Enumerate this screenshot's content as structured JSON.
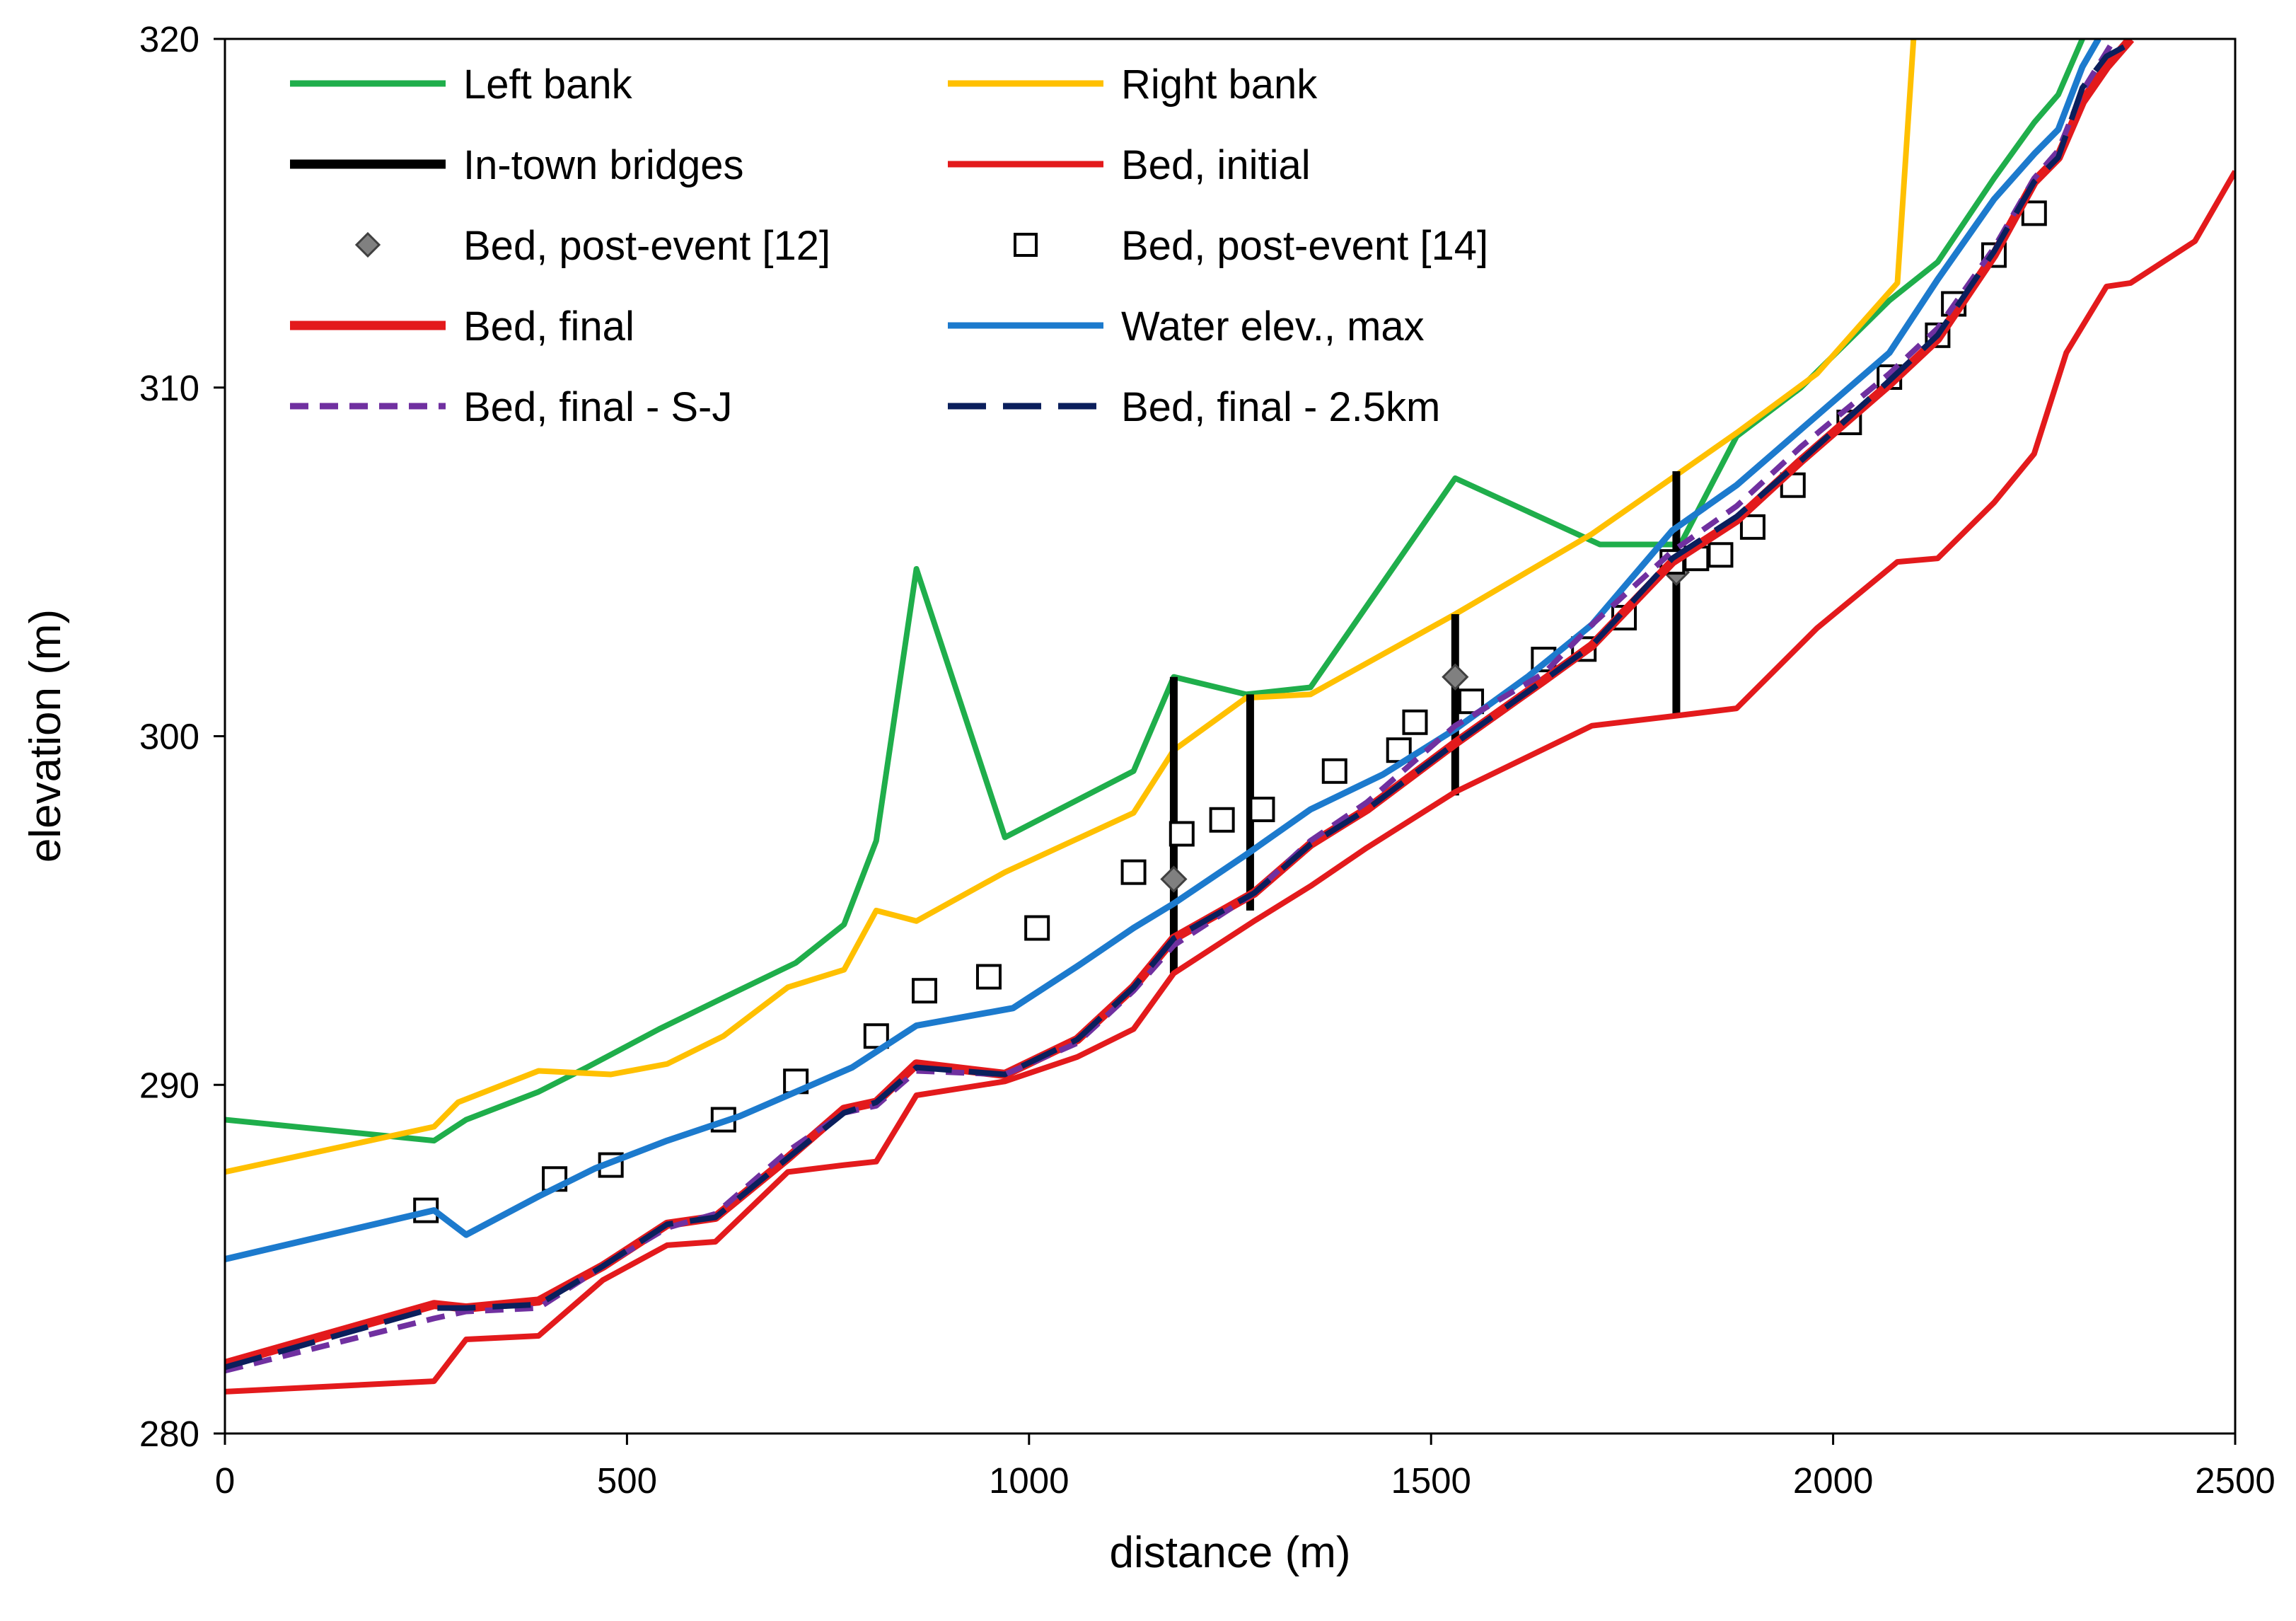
{
  "chart_data": {
    "type": "line",
    "title": "",
    "xlabel": "distance (m)",
    "ylabel": "elevation (m)",
    "xlim": [
      0,
      2500
    ],
    "ylim": [
      280,
      320
    ],
    "xticks": [
      0,
      500,
      1000,
      1500,
      2000,
      2500
    ],
    "yticks": [
      280,
      290,
      300,
      310,
      320
    ],
    "grid": false,
    "legend": "top-left, inside plot, two columns",
    "series": [
      {
        "name": "Left bank",
        "style": "line",
        "color": "#1FAE4B",
        "dash": "solid",
        "points": [
          [
            0,
            289
          ],
          [
            260,
            288.4
          ],
          [
            300,
            289
          ],
          [
            390,
            289.8
          ],
          [
            450,
            290.5
          ],
          [
            540,
            291.6
          ],
          [
            620,
            292.5
          ],
          [
            710,
            293.5
          ],
          [
            770,
            294.6
          ],
          [
            810,
            297
          ],
          [
            860,
            304.8
          ],
          [
            970,
            297.1
          ],
          [
            1130,
            299
          ],
          [
            1180,
            301.7
          ],
          [
            1270,
            301.2
          ],
          [
            1350,
            301.4
          ],
          [
            1530,
            307.4
          ],
          [
            1710,
            305.5
          ],
          [
            1810,
            305.5
          ],
          [
            1880,
            308.6
          ],
          [
            1960,
            310
          ],
          [
            2070,
            312.5
          ],
          [
            2130,
            313.6
          ],
          [
            2200,
            316
          ],
          [
            2250,
            317.6
          ],
          [
            2280,
            318.4
          ],
          [
            2310,
            320
          ]
        ]
      },
      {
        "name": "Right bank",
        "style": "line",
        "color": "#FFC000",
        "dash": "solid",
        "points": [
          [
            0,
            287.5
          ],
          [
            260,
            288.8
          ],
          [
            290,
            289.5
          ],
          [
            390,
            290.4
          ],
          [
            480,
            290.3
          ],
          [
            550,
            290.6
          ],
          [
            620,
            291.4
          ],
          [
            700,
            292.8
          ],
          [
            770,
            293.3
          ],
          [
            810,
            295
          ],
          [
            860,
            294.7
          ],
          [
            970,
            296.1
          ],
          [
            1130,
            297.8
          ],
          [
            1180,
            299.6
          ],
          [
            1270,
            301.1
          ],
          [
            1350,
            301.2
          ],
          [
            1530,
            303.5
          ],
          [
            1700,
            305.8
          ],
          [
            1880,
            308.7
          ],
          [
            1980,
            310.4
          ],
          [
            2080,
            313
          ],
          [
            2100,
            320
          ]
        ]
      },
      {
        "name": "In-town bridges",
        "style": "vbar",
        "color": "#000000",
        "bars": [
          [
            1180,
            293.2,
            301.7
          ],
          [
            1275,
            295,
            301.2
          ],
          [
            1530,
            298.3,
            303.5
          ],
          [
            1805,
            300.6,
            307.6
          ]
        ]
      },
      {
        "name": "Bed, initial",
        "style": "line",
        "color": "#E31A1C",
        "dash": "solid",
        "points": [
          [
            0,
            281.2
          ],
          [
            260,
            281.5
          ],
          [
            300,
            282.7
          ],
          [
            390,
            282.8
          ],
          [
            470,
            284.4
          ],
          [
            550,
            285.4
          ],
          [
            610,
            285.5
          ],
          [
            700,
            287.5
          ],
          [
            770,
            287.7
          ],
          [
            810,
            287.8
          ],
          [
            860,
            289.7
          ],
          [
            970,
            290.1
          ],
          [
            1060,
            290.8
          ],
          [
            1130,
            291.6
          ],
          [
            1180,
            293.2
          ],
          [
            1280,
            294.7
          ],
          [
            1350,
            295.7
          ],
          [
            1420,
            296.8
          ],
          [
            1530,
            298.4
          ],
          [
            1700,
            300.3
          ],
          [
            1810,
            300.6
          ],
          [
            1880,
            300.8
          ],
          [
            1980,
            303.1
          ],
          [
            2080,
            305
          ],
          [
            2130,
            305.1
          ],
          [
            2200,
            306.7
          ],
          [
            2250,
            308.1
          ],
          [
            2290,
            311
          ],
          [
            2340,
            312.9
          ],
          [
            2370,
            313
          ],
          [
            2450,
            314.2
          ],
          [
            2500,
            316.2
          ]
        ]
      },
      {
        "name": "Bed, post-event [12]",
        "style": "marker-diamond",
        "color": "#808080",
        "points": [
          [
            1180,
            295.9
          ],
          [
            1530,
            301.7
          ],
          [
            1805,
            304.7
          ]
        ]
      },
      {
        "name": "Bed, post-event [14]",
        "style": "marker-square",
        "color": "#000000",
        "points": [
          [
            250,
            286.4
          ],
          [
            410,
            287.3
          ],
          [
            480,
            287.7
          ],
          [
            620,
            289
          ],
          [
            710,
            290.1
          ],
          [
            810,
            291.4
          ],
          [
            870,
            292.7
          ],
          [
            950,
            293.1
          ],
          [
            1010,
            294.5
          ],
          [
            1130,
            296.1
          ],
          [
            1190,
            297.2
          ],
          [
            1240,
            297.6
          ],
          [
            1290,
            297.9
          ],
          [
            1380,
            299
          ],
          [
            1460,
            299.6
          ],
          [
            1480,
            300.4
          ],
          [
            1550,
            301
          ],
          [
            1640,
            302.2
          ],
          [
            1690,
            302.5
          ],
          [
            1740,
            303.4
          ],
          [
            1800,
            305
          ],
          [
            1830,
            305.1
          ],
          [
            1860,
            305.2
          ],
          [
            1900,
            306
          ],
          [
            1950,
            307.2
          ],
          [
            2020,
            309
          ],
          [
            2070,
            310.3
          ],
          [
            2130,
            311.5
          ],
          [
            2150,
            312.4
          ],
          [
            2200,
            313.8
          ],
          [
            2250,
            315
          ]
        ]
      },
      {
        "name": "Bed, final",
        "style": "line",
        "color": "#E31A1C",
        "dash": "solid",
        "points": [
          [
            0,
            282
          ],
          [
            260,
            283.7
          ],
          [
            300,
            283.6
          ],
          [
            390,
            283.8
          ],
          [
            470,
            284.8
          ],
          [
            550,
            286
          ],
          [
            610,
            286.2
          ],
          [
            700,
            287.9
          ],
          [
            770,
            289.3
          ],
          [
            810,
            289.5
          ],
          [
            860,
            290.6
          ],
          [
            970,
            290.3
          ],
          [
            1060,
            291.3
          ],
          [
            1130,
            292.8
          ],
          [
            1180,
            294.2
          ],
          [
            1280,
            295.5
          ],
          [
            1350,
            296.9
          ],
          [
            1420,
            297.9
          ],
          [
            1530,
            299.8
          ],
          [
            1640,
            301.6
          ],
          [
            1700,
            302.6
          ],
          [
            1800,
            305
          ],
          [
            1880,
            306.2
          ],
          [
            1960,
            307.9
          ],
          [
            2070,
            310.1
          ],
          [
            2130,
            311.4
          ],
          [
            2200,
            313.8
          ],
          [
            2250,
            315.9
          ],
          [
            2280,
            316.6
          ],
          [
            2310,
            318.2
          ],
          [
            2340,
            319.2
          ],
          [
            2370,
            320
          ]
        ]
      },
      {
        "name": "Water elev., max",
        "style": "line",
        "color": "#1C7ACD",
        "dash": "solid",
        "points": [
          [
            0,
            285
          ],
          [
            260,
            286.4
          ],
          [
            300,
            285.7
          ],
          [
            390,
            286.8
          ],
          [
            460,
            287.6
          ],
          [
            550,
            288.4
          ],
          [
            640,
            289.1
          ],
          [
            720,
            289.9
          ],
          [
            780,
            290.5
          ],
          [
            860,
            291.7
          ],
          [
            980,
            292.2
          ],
          [
            1060,
            293.4
          ],
          [
            1130,
            294.5
          ],
          [
            1180,
            295.2
          ],
          [
            1270,
            296.6
          ],
          [
            1350,
            297.9
          ],
          [
            1440,
            298.9
          ],
          [
            1530,
            300.2
          ],
          [
            1620,
            301.7
          ],
          [
            1700,
            303.2
          ],
          [
            1800,
            305.9
          ],
          [
            1880,
            307.2
          ],
          [
            1960,
            308.8
          ],
          [
            2070,
            311
          ],
          [
            2130,
            313.1
          ],
          [
            2200,
            315.4
          ],
          [
            2250,
            316.7
          ],
          [
            2280,
            317.4
          ],
          [
            2310,
            319.2
          ],
          [
            2330,
            320
          ]
        ]
      },
      {
        "name": "Bed, final - S-J",
        "style": "line",
        "color": "#7030A0",
        "dash": "dashed",
        "points": [
          [
            0,
            281.8
          ],
          [
            260,
            283.3
          ],
          [
            300,
            283.5
          ],
          [
            390,
            283.6
          ],
          [
            470,
            284.8
          ],
          [
            550,
            285.9
          ],
          [
            610,
            286.3
          ],
          [
            700,
            288.1
          ],
          [
            770,
            289.2
          ],
          [
            810,
            289.4
          ],
          [
            860,
            290.4
          ],
          [
            970,
            290.3
          ],
          [
            1060,
            291.2
          ],
          [
            1130,
            292.7
          ],
          [
            1180,
            294
          ],
          [
            1280,
            295.5
          ],
          [
            1350,
            297
          ],
          [
            1420,
            298.1
          ],
          [
            1530,
            300.3
          ],
          [
            1640,
            301.8
          ],
          [
            1700,
            303.2
          ],
          [
            1800,
            305.3
          ],
          [
            1880,
            306.6
          ],
          [
            1960,
            308.3
          ],
          [
            2070,
            310.4
          ],
          [
            2130,
            311.7
          ],
          [
            2200,
            314
          ],
          [
            2250,
            316
          ],
          [
            2280,
            316.8
          ],
          [
            2310,
            318.5
          ],
          [
            2350,
            320
          ]
        ]
      },
      {
        "name": "Bed, final - 2.5km",
        "style": "line",
        "color": "#0B1F5C",
        "dash": "longdash",
        "points": [
          [
            0,
            281.9
          ],
          [
            260,
            283.6
          ],
          [
            300,
            283.6
          ],
          [
            390,
            283.7
          ],
          [
            470,
            284.8
          ],
          [
            550,
            286
          ],
          [
            610,
            286.2
          ],
          [
            700,
            287.9
          ],
          [
            770,
            289.2
          ],
          [
            810,
            289.5
          ],
          [
            860,
            290.5
          ],
          [
            970,
            290.3
          ],
          [
            1060,
            291.3
          ],
          [
            1130,
            292.8
          ],
          [
            1180,
            294.2
          ],
          [
            1280,
            295.5
          ],
          [
            1350,
            296.9
          ],
          [
            1420,
            297.9
          ],
          [
            1530,
            299.8
          ],
          [
            1640,
            301.6
          ],
          [
            1700,
            302.6
          ],
          [
            1800,
            305.1
          ],
          [
            1880,
            306.3
          ],
          [
            1960,
            307.9
          ],
          [
            2070,
            310.2
          ],
          [
            2130,
            311.5
          ],
          [
            2200,
            313.9
          ],
          [
            2250,
            315.9
          ],
          [
            2280,
            316.6
          ],
          [
            2310,
            318.6
          ],
          [
            2340,
            319.5
          ],
          [
            2380,
            320
          ]
        ]
      }
    ]
  }
}
